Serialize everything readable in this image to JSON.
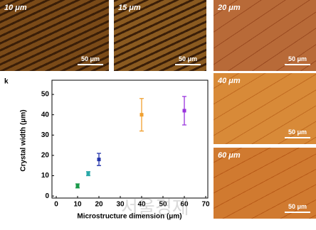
{
  "chart_data": {
    "type": "scatter",
    "panel_label": "k",
    "x_label": "Microstructure dimension (μm)",
    "y_label": "Crystal width (μm)",
    "x": [
      10,
      15,
      20,
      40,
      60
    ],
    "values": [
      5,
      11,
      18,
      40,
      42
    ],
    "errors": [
      1,
      1,
      3,
      8,
      7
    ],
    "colors": [
      "#1a9a4a",
      "#2aa8a8",
      "#2233aa",
      "#f0a030",
      "#9933dd"
    ],
    "xlim": [
      -2,
      71
    ],
    "xticks": [
      0,
      10,
      20,
      30,
      40,
      50,
      60,
      70
    ],
    "ylim": [
      -1,
      57
    ],
    "yticks": [
      0,
      10,
      20,
      30,
      40,
      50
    ]
  },
  "panels": [
    {
      "label": "10 μm",
      "scale": "50 μm"
    },
    {
      "label": "15 μm",
      "scale": "50 μm"
    },
    {
      "label": "20 μm",
      "scale": "50 μm"
    },
    {
      "label": "40 μm",
      "scale": "50 μm"
    },
    {
      "label": "60 μm",
      "scale": "50 μm"
    }
  ],
  "watermark": "서울경제"
}
